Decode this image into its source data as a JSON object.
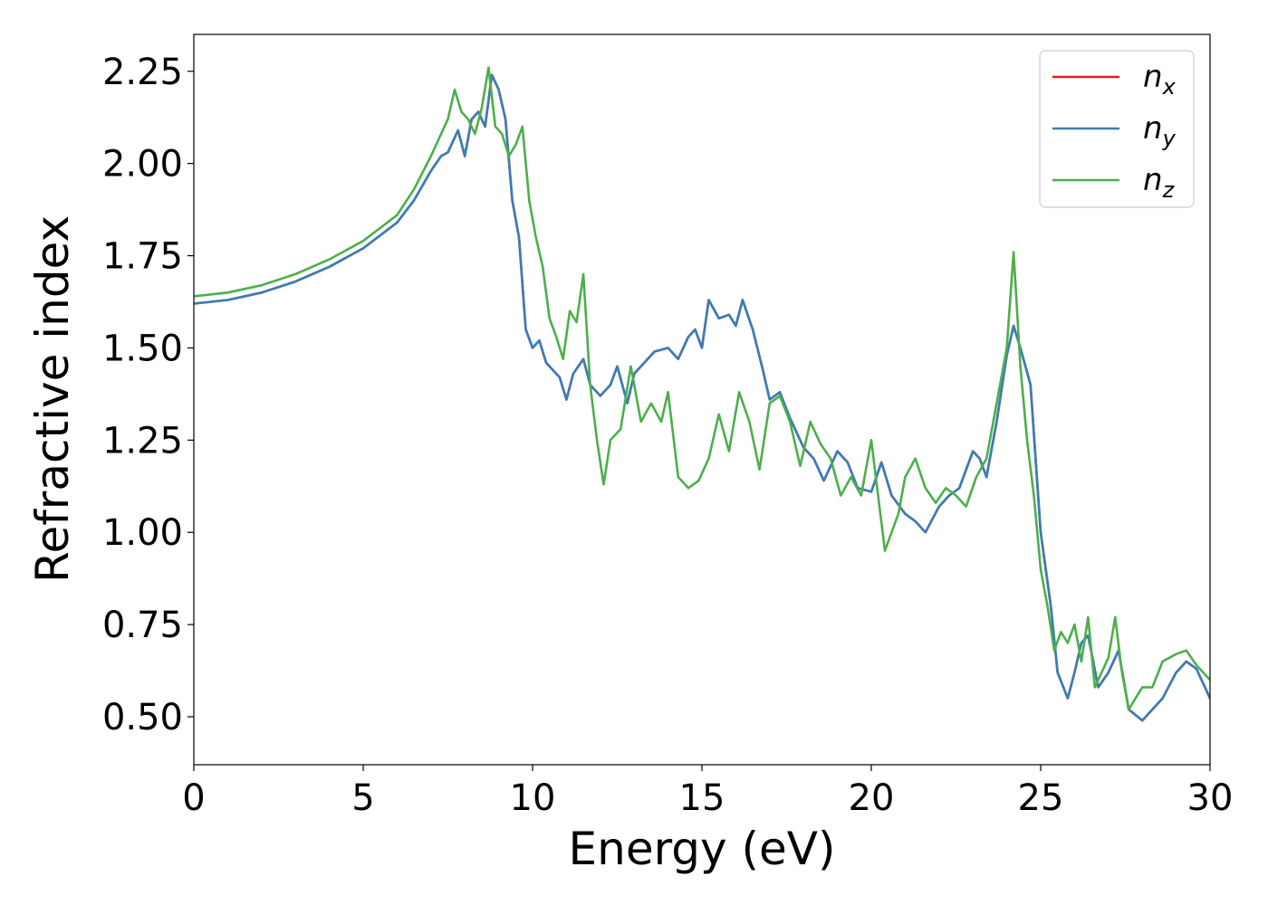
{
  "chart_data": {
    "type": "line",
    "title": "",
    "xlabel": "Energy (eV)",
    "ylabel": "Refractive index",
    "xlim": [
      0,
      30
    ],
    "ylim": [
      0.37,
      2.35
    ],
    "xticks": [
      0,
      5,
      10,
      15,
      20,
      25,
      30
    ],
    "xtick_labels": [
      "0",
      "5",
      "10",
      "15",
      "20",
      "25",
      "30"
    ],
    "yticks": [
      0.5,
      0.75,
      1.0,
      1.25,
      1.5,
      1.75,
      2.0,
      2.25
    ],
    "ytick_labels": [
      "0.50",
      "0.75",
      "1.00",
      "1.25",
      "1.50",
      "1.75",
      "2.00",
      "2.25"
    ],
    "grid": false,
    "legend_position": "top-right",
    "series": [
      {
        "name": "n",
        "subscript": "x",
        "color": "#e41a1c",
        "x": [
          0,
          1,
          2,
          3,
          4,
          5,
          6,
          6.5,
          7,
          7.3,
          7.5,
          7.8,
          8,
          8.2,
          8.4,
          8.6,
          8.8,
          9,
          9.2,
          9.4,
          9.6,
          9.8,
          10,
          10.2,
          10.4,
          10.6,
          10.8,
          11,
          11.2,
          11.5,
          11.7,
          12,
          12.3,
          12.5,
          12.8,
          13,
          13.3,
          13.6,
          14,
          14.3,
          14.6,
          14.8,
          15,
          15.2,
          15.5,
          15.8,
          16,
          16.2,
          16.5,
          16.8,
          17,
          17.3,
          17.6,
          18,
          18.3,
          18.6,
          19,
          19.3,
          19.6,
          20,
          20.3,
          20.6,
          21,
          21.3,
          21.6,
          22,
          22.3,
          22.6,
          23,
          23.2,
          23.4,
          23.7,
          24,
          24.2,
          24.4,
          24.7,
          25,
          25.3,
          25.5,
          25.8,
          26,
          26.2,
          26.4,
          26.7,
          27,
          27.3,
          27.6,
          28,
          28.3,
          28.6,
          29,
          29.3,
          29.6,
          30
        ],
        "y": [
          1.62,
          1.63,
          1.65,
          1.68,
          1.72,
          1.77,
          1.84,
          1.9,
          1.98,
          2.02,
          2.03,
          2.09,
          2.02,
          2.12,
          2.14,
          2.1,
          2.24,
          2.2,
          2.12,
          1.9,
          1.8,
          1.55,
          1.5,
          1.52,
          1.46,
          1.44,
          1.42,
          1.36,
          1.43,
          1.47,
          1.4,
          1.37,
          1.4,
          1.45,
          1.35,
          1.43,
          1.46,
          1.49,
          1.5,
          1.47,
          1.53,
          1.55,
          1.5,
          1.63,
          1.58,
          1.59,
          1.56,
          1.63,
          1.55,
          1.44,
          1.36,
          1.38,
          1.31,
          1.23,
          1.2,
          1.14,
          1.22,
          1.19,
          1.12,
          1.11,
          1.19,
          1.1,
          1.05,
          1.03,
          1.0,
          1.07,
          1.1,
          1.12,
          1.22,
          1.2,
          1.15,
          1.3,
          1.48,
          1.56,
          1.5,
          1.4,
          1.0,
          0.8,
          0.62,
          0.55,
          0.62,
          0.7,
          0.72,
          0.58,
          0.62,
          0.68,
          0.52,
          0.49,
          0.52,
          0.55,
          0.62,
          0.65,
          0.63,
          0.55
        ]
      },
      {
        "name": "n",
        "subscript": "y",
        "color": "#377eb8",
        "x": [
          0,
          1,
          2,
          3,
          4,
          5,
          6,
          6.5,
          7,
          7.3,
          7.5,
          7.8,
          8,
          8.2,
          8.4,
          8.6,
          8.8,
          9,
          9.2,
          9.4,
          9.6,
          9.8,
          10,
          10.2,
          10.4,
          10.6,
          10.8,
          11,
          11.2,
          11.5,
          11.7,
          12,
          12.3,
          12.5,
          12.8,
          13,
          13.3,
          13.6,
          14,
          14.3,
          14.6,
          14.8,
          15,
          15.2,
          15.5,
          15.8,
          16,
          16.2,
          16.5,
          16.8,
          17,
          17.3,
          17.6,
          18,
          18.3,
          18.6,
          19,
          19.3,
          19.6,
          20,
          20.3,
          20.6,
          21,
          21.3,
          21.6,
          22,
          22.3,
          22.6,
          23,
          23.2,
          23.4,
          23.7,
          24,
          24.2,
          24.4,
          24.7,
          25,
          25.3,
          25.5,
          25.8,
          26,
          26.2,
          26.4,
          26.7,
          27,
          27.3,
          27.6,
          28,
          28.3,
          28.6,
          29,
          29.3,
          29.6,
          30
        ],
        "y": [
          1.62,
          1.63,
          1.65,
          1.68,
          1.72,
          1.77,
          1.84,
          1.9,
          1.98,
          2.02,
          2.03,
          2.09,
          2.02,
          2.12,
          2.14,
          2.1,
          2.24,
          2.2,
          2.12,
          1.9,
          1.8,
          1.55,
          1.5,
          1.52,
          1.46,
          1.44,
          1.42,
          1.36,
          1.43,
          1.47,
          1.4,
          1.37,
          1.4,
          1.45,
          1.35,
          1.43,
          1.46,
          1.49,
          1.5,
          1.47,
          1.53,
          1.55,
          1.5,
          1.63,
          1.58,
          1.59,
          1.56,
          1.63,
          1.55,
          1.44,
          1.36,
          1.38,
          1.31,
          1.23,
          1.2,
          1.14,
          1.22,
          1.19,
          1.12,
          1.11,
          1.19,
          1.1,
          1.05,
          1.03,
          1.0,
          1.07,
          1.1,
          1.12,
          1.22,
          1.2,
          1.15,
          1.3,
          1.48,
          1.56,
          1.5,
          1.4,
          1.0,
          0.8,
          0.62,
          0.55,
          0.62,
          0.7,
          0.72,
          0.58,
          0.62,
          0.68,
          0.52,
          0.49,
          0.52,
          0.55,
          0.62,
          0.65,
          0.63,
          0.55
        ]
      },
      {
        "name": "n",
        "subscript": "z",
        "color": "#4daf4a",
        "x": [
          0,
          1,
          2,
          3,
          4,
          5,
          6,
          6.5,
          7,
          7.3,
          7.5,
          7.7,
          7.9,
          8.1,
          8.3,
          8.5,
          8.7,
          8.9,
          9.1,
          9.3,
          9.5,
          9.7,
          9.9,
          10.1,
          10.3,
          10.5,
          10.7,
          10.9,
          11.1,
          11.3,
          11.5,
          11.7,
          11.9,
          12.1,
          12.3,
          12.6,
          12.9,
          13.2,
          13.5,
          13.8,
          14,
          14.3,
          14.6,
          14.9,
          15.2,
          15.5,
          15.8,
          16.1,
          16.4,
          16.7,
          17,
          17.3,
          17.6,
          17.9,
          18.2,
          18.5,
          18.8,
          19.1,
          19.4,
          19.7,
          20,
          20.2,
          20.4,
          20.6,
          20.8,
          21,
          21.3,
          21.6,
          21.9,
          22.2,
          22.5,
          22.8,
          23.1,
          23.4,
          23.7,
          24,
          24.2,
          24.4,
          24.6,
          24.8,
          25,
          25.2,
          25.4,
          25.6,
          25.8,
          26,
          26.2,
          26.4,
          26.6,
          26.8,
          27,
          27.2,
          27.4,
          27.6,
          27.8,
          28,
          28.3,
          28.6,
          29,
          29.3,
          29.6,
          30
        ],
        "y": [
          1.64,
          1.65,
          1.67,
          1.7,
          1.74,
          1.79,
          1.86,
          1.93,
          2.02,
          2.08,
          2.12,
          2.2,
          2.14,
          2.12,
          2.08,
          2.15,
          2.26,
          2.1,
          2.08,
          2.02,
          2.05,
          2.1,
          1.9,
          1.8,
          1.72,
          1.58,
          1.53,
          1.47,
          1.6,
          1.57,
          1.7,
          1.4,
          1.25,
          1.13,
          1.25,
          1.28,
          1.45,
          1.3,
          1.35,
          1.3,
          1.38,
          1.15,
          1.12,
          1.14,
          1.2,
          1.32,
          1.22,
          1.38,
          1.3,
          1.17,
          1.35,
          1.37,
          1.3,
          1.18,
          1.3,
          1.24,
          1.2,
          1.1,
          1.15,
          1.1,
          1.25,
          1.1,
          0.95,
          1.0,
          1.05,
          1.15,
          1.2,
          1.12,
          1.08,
          1.12,
          1.1,
          1.07,
          1.15,
          1.2,
          1.35,
          1.5,
          1.76,
          1.45,
          1.25,
          1.1,
          0.9,
          0.8,
          0.68,
          0.73,
          0.7,
          0.75,
          0.65,
          0.77,
          0.58,
          0.62,
          0.66,
          0.77,
          0.62,
          0.52,
          0.55,
          0.58,
          0.58,
          0.65,
          0.67,
          0.68,
          0.64,
          0.6
        ]
      }
    ]
  }
}
